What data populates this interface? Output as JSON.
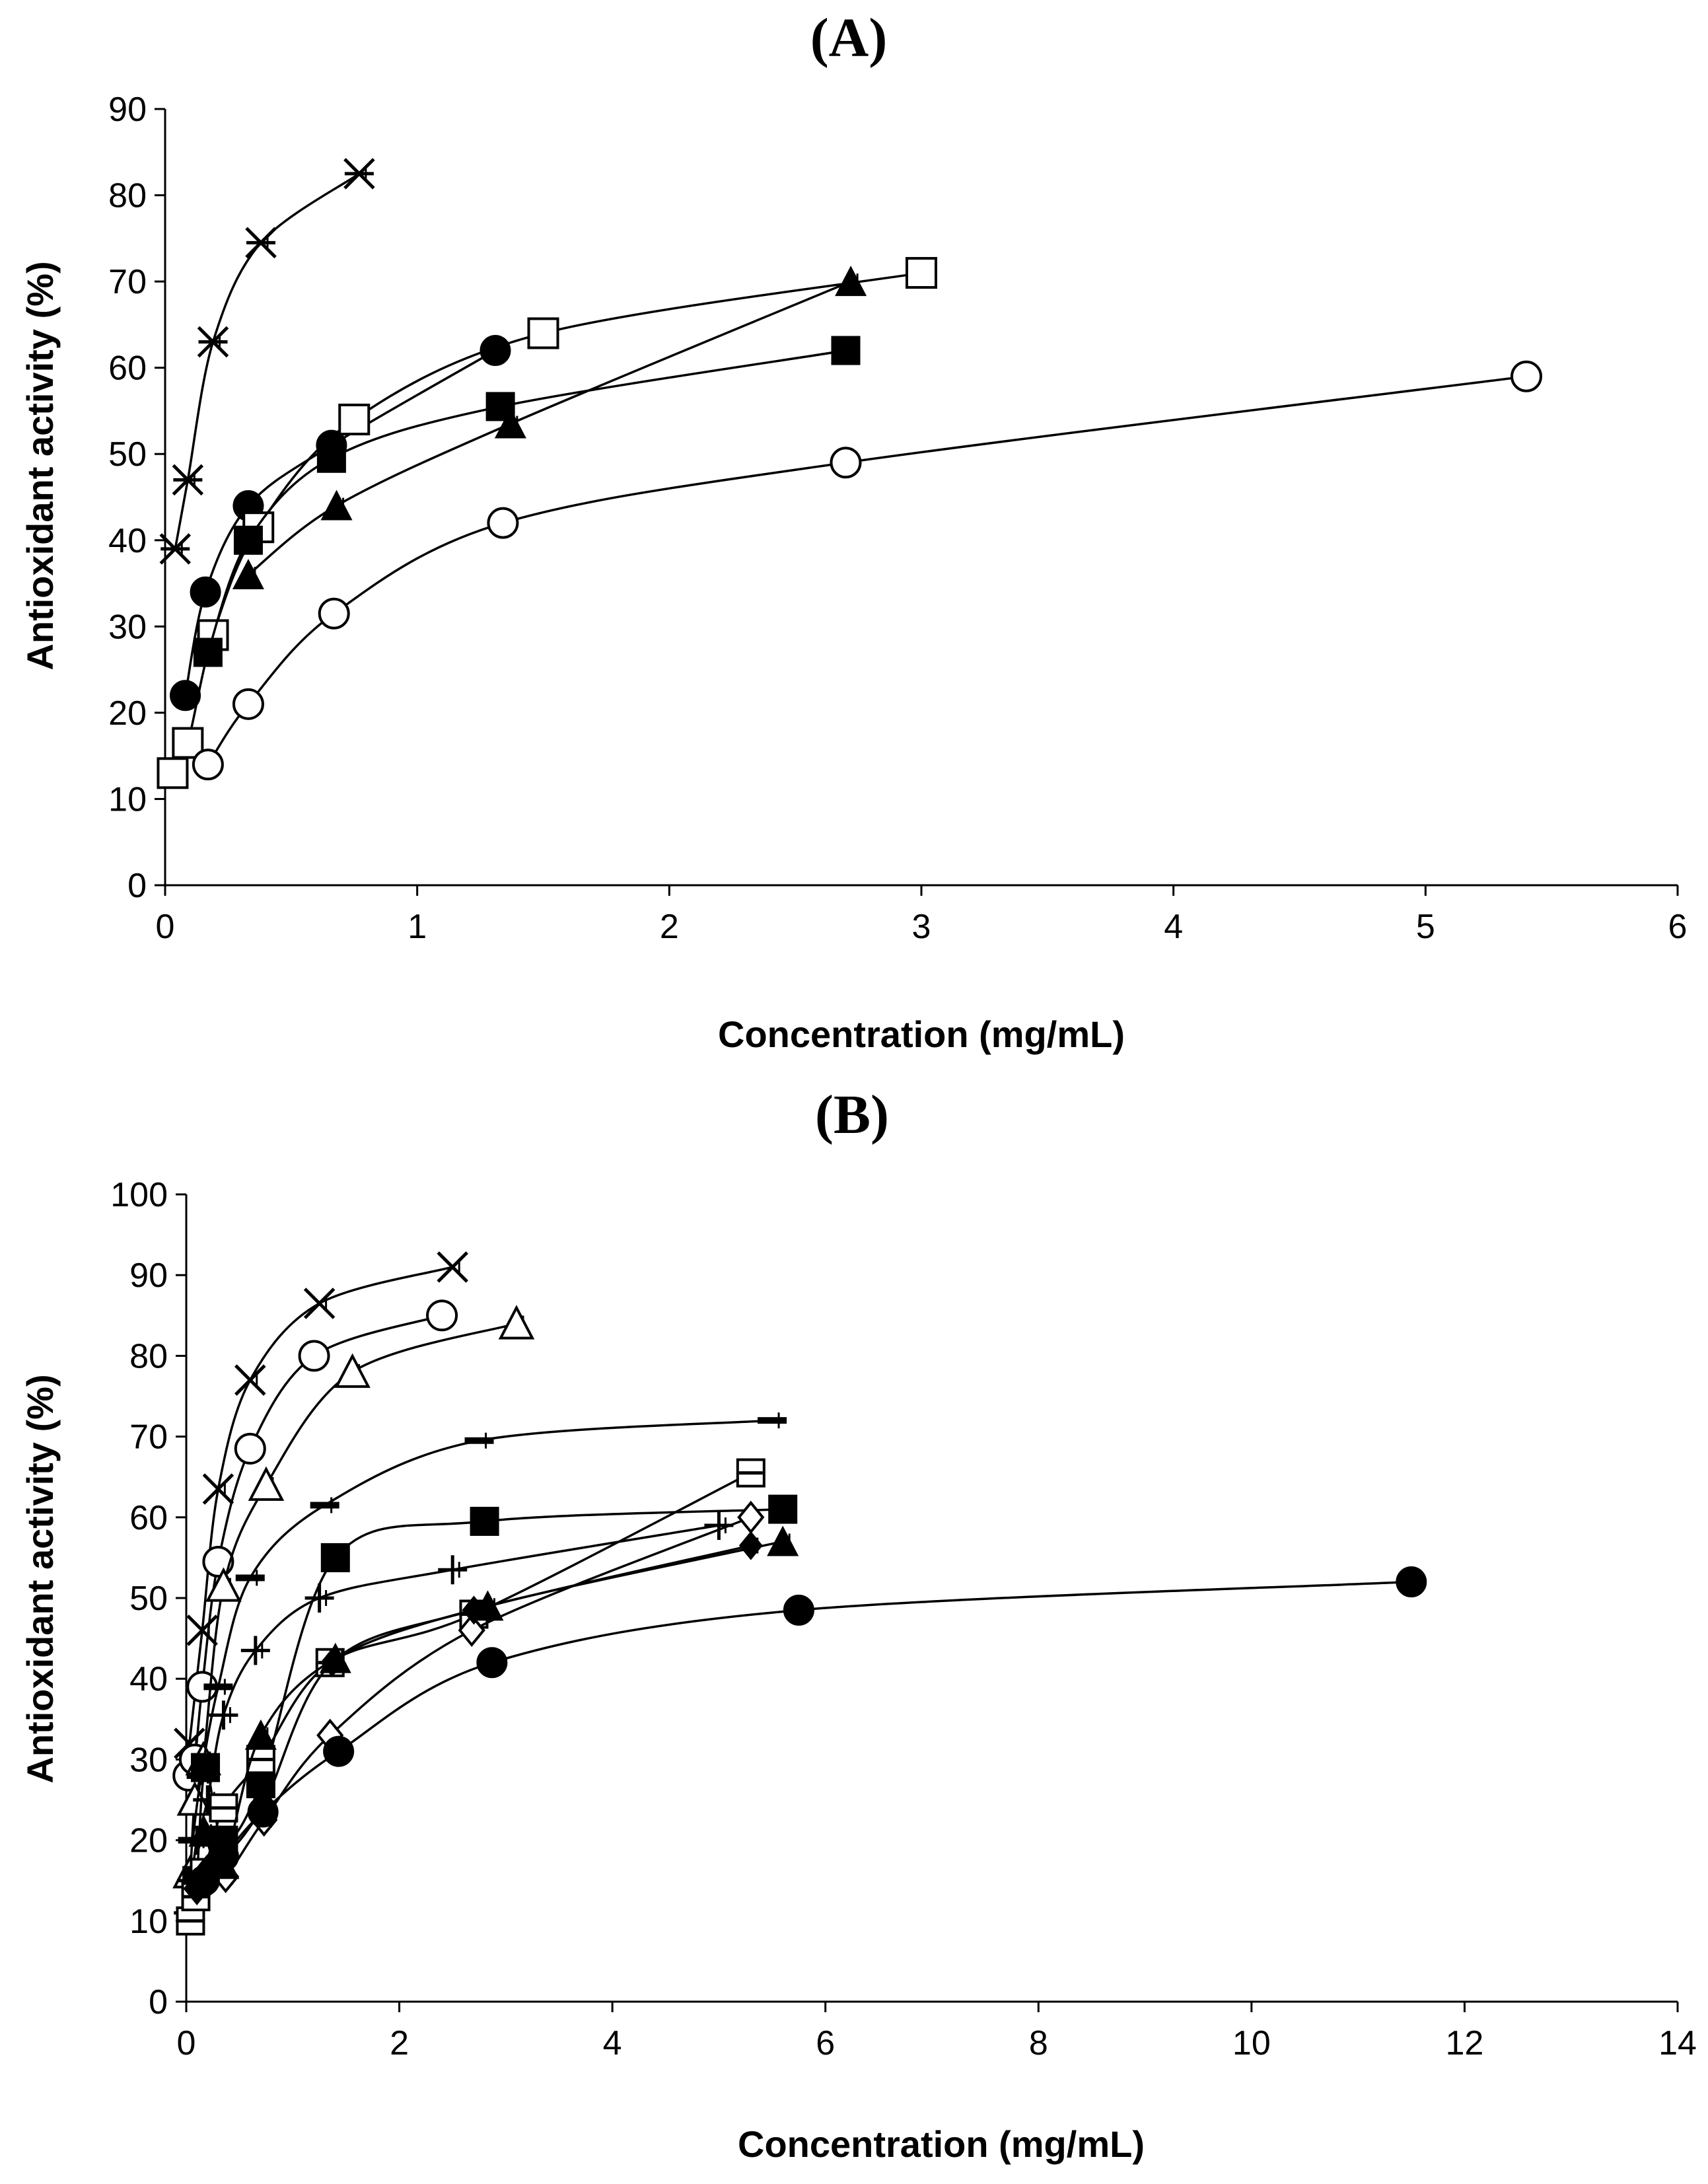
{
  "chart_data": [
    {
      "panel": "(A)",
      "type": "line",
      "title": "",
      "xlabel": "Concentration (mg/mL)",
      "ylabel": "Antioxidant activity (%)",
      "xlim": [
        0,
        6
      ],
      "ylim": [
        0,
        90
      ],
      "xticks": [
        0,
        1,
        2,
        3,
        4,
        5,
        6
      ],
      "yticks": [
        0,
        10,
        20,
        30,
        40,
        50,
        60,
        70,
        80,
        90
      ],
      "grid": false,
      "series": [
        {
          "marker": "asterisk",
          "x": [
            0.04,
            0.09,
            0.19,
            0.38,
            0.77
          ],
          "y": [
            39,
            47,
            63,
            74.5,
            82.5
          ]
        },
        {
          "marker": "filled-circle",
          "x": [
            0.08,
            0.16,
            0.33,
            0.66,
            1.31
          ],
          "y": [
            22,
            34,
            44,
            51,
            62
          ]
        },
        {
          "marker": "open-square",
          "x": [
            0.03,
            0.09,
            0.19,
            0.37,
            0.75,
            1.5,
            3.0
          ],
          "y": [
            13,
            16.5,
            29,
            41.5,
            54,
            64,
            71
          ]
        },
        {
          "marker": "filled-square",
          "x": [
            0.17,
            0.33,
            0.66,
            1.33,
            2.7
          ],
          "y": [
            27,
            40,
            49.5,
            55.5,
            62
          ]
        },
        {
          "marker": "filled-triangle",
          "x": [
            0.33,
            0.68,
            1.37,
            2.72
          ],
          "y": [
            36,
            44,
            53.5,
            70
          ]
        },
        {
          "marker": "open-circle",
          "x": [
            0.17,
            0.33,
            0.67,
            1.34,
            2.7,
            5.4
          ],
          "y": [
            14,
            21,
            31.5,
            42,
            49,
            59
          ]
        }
      ]
    },
    {
      "panel": "(B)",
      "type": "line",
      "title": "",
      "xlabel": "Concentration (mg/mL)",
      "ylabel": "Antioxidant activity (%)",
      "xlim": [
        0,
        14
      ],
      "ylim": [
        0,
        100
      ],
      "xticks": [
        0,
        2,
        4,
        6,
        8,
        10,
        12,
        14
      ],
      "yticks": [
        0,
        10,
        20,
        30,
        40,
        50,
        60,
        70,
        80,
        90,
        100
      ],
      "grid": false,
      "series": [
        {
          "marker": "x",
          "x": [
            0.03,
            0.15,
            0.3,
            0.6,
            1.25,
            2.5
          ],
          "y": [
            32,
            46,
            63.5,
            77,
            86.5,
            91
          ]
        },
        {
          "marker": "open-circle",
          "x": [
            0.02,
            0.08,
            0.15,
            0.3,
            0.6,
            1.2,
            2.4
          ],
          "y": [
            28,
            30,
            39,
            54.5,
            68.5,
            80,
            85
          ]
        },
        {
          "marker": "open-triangle",
          "x": [
            0.04,
            0.08,
            0.16,
            0.35,
            0.75,
            1.56,
            3.1
          ],
          "y": [
            16,
            25,
            30,
            51.5,
            64,
            78,
            84
          ]
        },
        {
          "marker": "dash",
          "x": [
            0.06,
            0.14,
            0.3,
            0.6,
            1.3,
            2.75,
            5.5
          ],
          "y": [
            20,
            28,
            39,
            52.5,
            61.5,
            69.5,
            72
          ]
        },
        {
          "marker": "plus",
          "x": [
            0.02,
            0.05,
            0.1,
            0.2,
            0.35,
            0.65,
            1.25,
            2.5,
            5.0
          ],
          "y": [
            11,
            15,
            20,
            25,
            35.5,
            43.5,
            50,
            53.5,
            59
          ]
        },
        {
          "marker": "filled-square",
          "x": [
            0.1,
            0.18,
            0.35,
            0.7,
            1.4,
            2.8,
            5.6
          ],
          "y": [
            15,
            29,
            20,
            27,
            55,
            59.5,
            61
          ]
        },
        {
          "marker": "boxed-minus",
          "x": [
            0.04,
            0.09,
            0.17,
            0.35,
            0.7,
            1.35,
            2.7,
            5.3
          ],
          "y": [
            10,
            13,
            16,
            24,
            30,
            42,
            48,
            65.5
          ]
        },
        {
          "marker": "open-diamond",
          "x": [
            0.1,
            0.2,
            0.37,
            0.73,
            1.35,
            2.68,
            5.3
          ],
          "y": [
            14,
            15,
            15.5,
            22.5,
            33,
            46,
            60
          ]
        },
        {
          "marker": "filled-diamond",
          "x": [
            0.1,
            0.2,
            0.37,
            0.73,
            1.37,
            2.7,
            5.3
          ],
          "y": [
            14,
            16.5,
            18,
            24.5,
            42,
            48.5,
            56.5
          ]
        },
        {
          "marker": "filled-triangle",
          "x": [
            0.17,
            0.35,
            0.7,
            1.4,
            2.83,
            5.6
          ],
          "y": [
            21,
            17,
            33,
            42.5,
            49,
            57
          ]
        },
        {
          "marker": "filled-circle",
          "x": [
            0.17,
            0.35,
            0.72,
            1.43,
            2.87,
            5.75,
            11.5
          ],
          "y": [
            15,
            18,
            23.5,
            31,
            42,
            48.5,
            52
          ]
        }
      ]
    }
  ]
}
